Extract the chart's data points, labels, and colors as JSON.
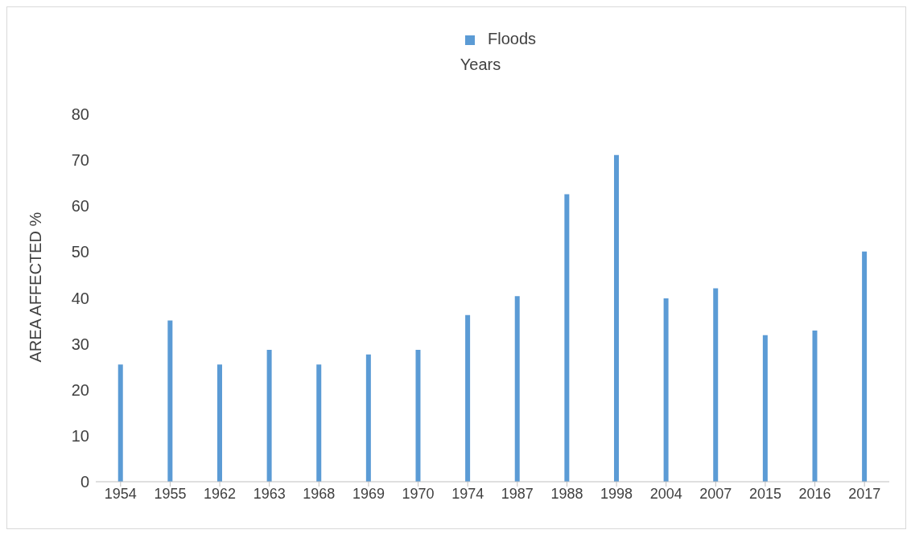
{
  "chart_data": {
    "type": "bar",
    "xlabel": "Years",
    "ylabel": "AREA AFFECTED %",
    "categories": [
      "1954",
      "1955",
      "1962",
      "1963",
      "1968",
      "1969",
      "1970",
      "1974",
      "1987",
      "1988",
      "1998",
      "2004",
      "2007",
      "2015",
      "2016",
      "2017"
    ],
    "series": [
      {
        "name": "Floods",
        "color": "#5b9bd5",
        "values": [
          25.5,
          35.1,
          25.5,
          28.7,
          25.5,
          27.7,
          28.7,
          36.3,
          40.4,
          62.6,
          71.1,
          39.9,
          42.1,
          31.9,
          32.9,
          50.1
        ]
      }
    ],
    "ylim": [
      0,
      80
    ],
    "yticks": [
      0,
      10,
      20,
      30,
      40,
      50,
      60,
      70,
      80
    ],
    "grid": false,
    "legend": "top"
  }
}
